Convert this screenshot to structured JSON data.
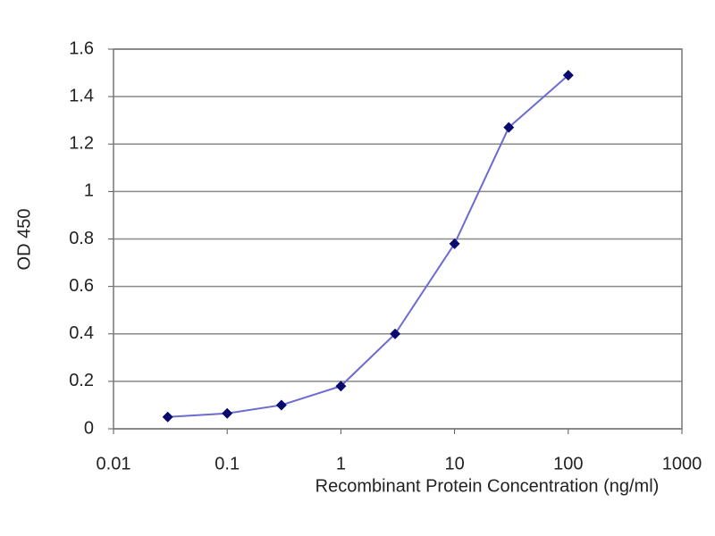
{
  "chart_data": {
    "type": "line",
    "x_label": "Recombinant Protein Concentration (ng/ml)",
    "y_label": "OD 450",
    "x": [
      0.03,
      0.1,
      0.3,
      1,
      3,
      10,
      30,
      100
    ],
    "series": [
      {
        "color": "#6b6bd0",
        "marker_color": "#0a0a6e",
        "values": [
          0.05,
          0.065,
          0.1,
          0.18,
          0.4,
          0.78,
          1.27,
          1.49
        ]
      }
    ],
    "xlim": [
      0.01,
      1000
    ],
    "xticks": [
      0.01,
      0.1,
      1,
      10,
      100,
      1000
    ],
    "x_log": true,
    "ylim": [
      0,
      1.6
    ],
    "yticks": [
      0,
      0.2,
      0.4,
      0.6,
      0.8,
      1,
      1.2,
      1.4,
      1.6
    ],
    "grid": true
  }
}
